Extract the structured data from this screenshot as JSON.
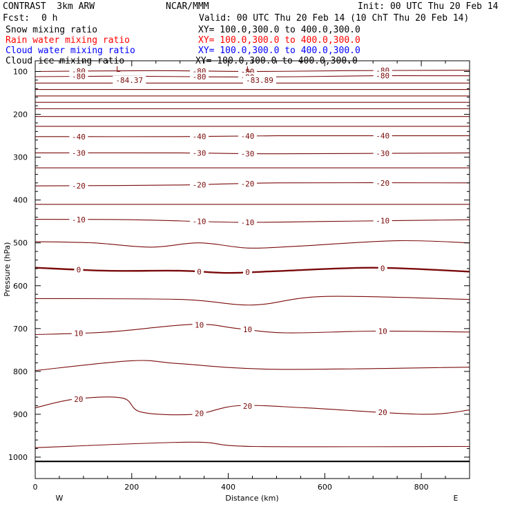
{
  "header": {
    "title": "CONTRAST  3km ARW",
    "source": "NCAR/MMM",
    "init": "Init: 00 UTC Thu 20 Feb 14",
    "fcst_label": "Fcst:",
    "fcst_value": "0 h",
    "valid": "Valid: 00 UTC Thu 20 Feb 14 (10 ChT Thu 20 Feb 14)"
  },
  "fields": [
    {
      "name": "Snow mixing ratio",
      "xy": "XY= 100.0,300.0 to 400.0,300.0",
      "color": "#000000"
    },
    {
      "name": "Rain water mixing ratio",
      "xy": "XY= 100.0,300.0 to 400.0,300.0",
      "color": "#ff0000"
    },
    {
      "name": "Cloud water mixing ratio",
      "xy": "XY= 100.0,300.0 to 400.0,300.0",
      "color": "#0000ff"
    },
    {
      "name": "Cloud ice mixing ratio",
      "xy": "XY= 100.0,300.0 to 400.0,300.0",
      "color": "#000000"
    }
  ],
  "chart_data": {
    "type": "line",
    "xlabel": "Distance (km)",
    "ylabel": "Pressure (hPa)",
    "xlim": [
      0,
      900
    ],
    "ylim": [
      1050,
      75
    ],
    "x_ticks": [
      0,
      200,
      400,
      600,
      800
    ],
    "y_ticks": [
      100,
      200,
      300,
      400,
      500,
      600,
      700,
      800,
      900,
      1000
    ],
    "x_end_labels": {
      "left": "W",
      "right": "E"
    },
    "contour_color": "#7a0a0a",
    "contours": [
      {
        "level": -80,
        "p": [
          [
            0,
            100
          ],
          [
            250,
            98
          ],
          [
            450,
            100
          ],
          [
            650,
            98
          ],
          [
            900,
            97
          ]
        ]
      },
      {
        "level": -80,
        "p": [
          [
            0,
            112
          ],
          [
            200,
            111
          ],
          [
            450,
            113
          ],
          [
            700,
            110
          ],
          [
            900,
            110
          ]
        ]
      },
      {
        "level": null,
        "p": [
          [
            0,
            127
          ],
          [
            900,
            127
          ]
        ]
      },
      {
        "level": null,
        "p": [
          [
            0,
            142
          ],
          [
            900,
            142
          ]
        ]
      },
      {
        "level": null,
        "p": [
          [
            0,
            157
          ],
          [
            900,
            157
          ]
        ]
      },
      {
        "level": null,
        "p": [
          [
            0,
            172
          ],
          [
            900,
            172
          ]
        ]
      },
      {
        "level": null,
        "p": [
          [
            0,
            187
          ],
          [
            900,
            187
          ]
        ]
      },
      {
        "level": null,
        "p": [
          [
            0,
            205
          ],
          [
            900,
            205
          ]
        ]
      },
      {
        "level": null,
        "p": [
          [
            0,
            228
          ],
          [
            900,
            228
          ]
        ]
      },
      {
        "level": -40,
        "p": [
          [
            0,
            252
          ],
          [
            300,
            252
          ],
          [
            500,
            250
          ],
          [
            900,
            250
          ]
        ]
      },
      {
        "level": -30,
        "p": [
          [
            0,
            290
          ],
          [
            300,
            290
          ],
          [
            500,
            292
          ],
          [
            900,
            290
          ]
        ]
      },
      {
        "level": null,
        "p": [
          [
            0,
            325
          ],
          [
            900,
            325
          ]
        ]
      },
      {
        "level": -20,
        "p": [
          [
            0,
            367
          ],
          [
            300,
            365
          ],
          [
            500,
            360
          ],
          [
            900,
            360
          ]
        ]
      },
      {
        "level": null,
        "p": [
          [
            0,
            410
          ],
          [
            900,
            410
          ]
        ]
      },
      {
        "level": -10,
        "p": [
          [
            0,
            445
          ],
          [
            200,
            446
          ],
          [
            420,
            452
          ],
          [
            600,
            450
          ],
          [
            900,
            446
          ]
        ]
      },
      {
        "level": null,
        "p": [
          [
            0,
            497
          ],
          [
            120,
            500
          ],
          [
            240,
            510
          ],
          [
            340,
            500
          ],
          [
            440,
            512
          ],
          [
            540,
            508
          ],
          [
            750,
            495
          ],
          [
            900,
            500
          ]
        ]
      },
      {
        "level": 0,
        "bold": true,
        "p": [
          [
            0,
            558
          ],
          [
            150,
            565
          ],
          [
            300,
            565
          ],
          [
            400,
            570
          ],
          [
            500,
            566
          ],
          [
            700,
            558
          ],
          [
            900,
            567
          ]
        ]
      },
      {
        "level": null,
        "p": [
          [
            0,
            630
          ],
          [
            300,
            632
          ],
          [
            450,
            645
          ],
          [
            600,
            625
          ],
          [
            900,
            632
          ]
        ]
      },
      {
        "level": 10,
        "p": [
          [
            0,
            714
          ],
          [
            150,
            708
          ],
          [
            330,
            690
          ],
          [
            420,
            700
          ],
          [
            520,
            710
          ],
          [
            700,
            706
          ],
          [
            900,
            708
          ]
        ]
      },
      {
        "level": null,
        "p": [
          [
            0,
            798
          ],
          [
            200,
            775
          ],
          [
            300,
            782
          ],
          [
            500,
            795
          ],
          [
            900,
            790
          ]
        ]
      },
      {
        "level": 20,
        "p": [
          [
            0,
            885
          ],
          [
            80,
            865
          ],
          [
            180,
            862
          ],
          [
            220,
            895
          ],
          [
            330,
            900
          ],
          [
            420,
            880
          ],
          [
            560,
            885
          ],
          [
            800,
            900
          ],
          [
            900,
            890
          ]
        ]
      },
      {
        "level": null,
        "p": [
          [
            0,
            978
          ],
          [
            320,
            965
          ],
          [
            450,
            975
          ],
          [
            900,
            975
          ]
        ]
      }
    ],
    "extrema": [
      {
        "marker": "L",
        "value": "-84.37",
        "x": 195,
        "p": 107
      },
      {
        "marker": "L",
        "value": "-83.89",
        "x": 465,
        "p": 107
      }
    ],
    "surface": {
      "p": 1010
    }
  }
}
